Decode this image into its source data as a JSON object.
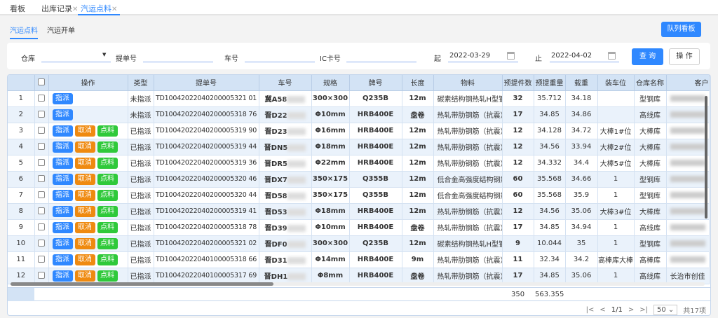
{
  "top_tabs": [
    {
      "label": "看板"
    },
    {
      "label": "出库记录"
    },
    {
      "label": "汽运点料",
      "active": true
    }
  ],
  "sub_tabs": [
    {
      "label": "汽运点料",
      "active": true
    },
    {
      "label": "汽运开单"
    }
  ],
  "queue_board_button": "队列看板",
  "filters": {
    "warehouse_label": "仓库",
    "warehouse_value": "",
    "bill_label": "提单号",
    "bill_value": "",
    "car_label": "车号",
    "car_value": "",
    "ic_label": "IC卡号",
    "ic_value": "",
    "start_label": "起",
    "start_value": "2022-03-29",
    "end_label": "止",
    "end_value": "2022-04-02",
    "query_button": "查 询",
    "action_button": "操 作"
  },
  "columns": [
    "",
    "",
    "操作",
    "类型",
    "提单号",
    "车号",
    "规格",
    "牌号",
    "长度",
    "物料",
    "预提件数",
    "预提重量",
    "载重",
    "装车位",
    "仓库名称",
    "客户"
  ],
  "action_labels": {
    "assign": "指派",
    "cancel": "取消",
    "check": "点料"
  },
  "rows": [
    {
      "no": "1",
      "type": "未指派",
      "bill": "TD10042022040200005321 01",
      "car": "冀A58",
      "spec": "300×300",
      "grade": "Q235B",
      "length": "12m",
      "material": "碳素结构钢热轧H型钢",
      "count": "32",
      "weight": "35.712",
      "load": "34.18",
      "slot": "",
      "warehouse": "型钢库"
    },
    {
      "no": "2",
      "type": "未指派",
      "bill": "TD10042022040200005318 76",
      "car": "晋D22",
      "spec": "Φ10mm",
      "grade": "HRB400E",
      "length": "盘卷",
      "material": "热轧带肋钢筋（抗震）",
      "count": "17",
      "weight": "34.85",
      "load": "34.86",
      "slot": "",
      "warehouse": "高线库"
    },
    {
      "no": "3",
      "type": "已指派",
      "bill": "TD10042022040200005319 90",
      "car": "晋D23",
      "spec": "Φ16mm",
      "grade": "HRB400E",
      "length": "12m",
      "material": "热轧带肋钢筋（抗震）",
      "count": "12",
      "weight": "34.128",
      "load": "34.72",
      "slot": "大棒1#位",
      "warehouse": "大棒库"
    },
    {
      "no": "4",
      "type": "已指派",
      "bill": "TD10042022040200005319 44",
      "car": "晋DN5",
      "spec": "Φ18mm",
      "grade": "HRB400E",
      "length": "12m",
      "material": "热轧带肋钢筋（抗震）",
      "count": "12",
      "weight": "34.56",
      "load": "33.94",
      "slot": "大棒2#位",
      "warehouse": "大棒库"
    },
    {
      "no": "5",
      "type": "已指派",
      "bill": "TD10042022040200005319 36",
      "car": "晋DR5",
      "spec": "Φ22mm",
      "grade": "HRB400E",
      "length": "12m",
      "material": "热轧带肋钢筋（抗震）",
      "count": "12",
      "weight": "34.332",
      "load": "34.4",
      "slot": "大棒5#位",
      "warehouse": "大棒库"
    },
    {
      "no": "6",
      "type": "已指派",
      "bill": "TD10042022040200005320 46",
      "car": "晋DX7",
      "spec": "350×175",
      "grade": "Q355B",
      "length": "12m",
      "material": "低合金高强度结构钢热轧",
      "count": "60",
      "weight": "35.568",
      "load": "34.66",
      "slot": "1",
      "warehouse": "型钢库"
    },
    {
      "no": "7",
      "type": "已指派",
      "bill": "TD10042022040200005320 44",
      "car": "晋D58",
      "spec": "350×175",
      "grade": "Q355B",
      "length": "12m",
      "material": "低合金高强度结构钢热轧",
      "count": "60",
      "weight": "35.568",
      "load": "35.9",
      "slot": "1",
      "warehouse": "型钢库"
    },
    {
      "no": "8",
      "type": "已指派",
      "bill": "TD10042022040200005319 41",
      "car": "晋D53",
      "spec": "Φ18mm",
      "grade": "HRB400E",
      "length": "12m",
      "material": "热轧带肋钢筋（抗震）",
      "count": "12",
      "weight": "34.56",
      "load": "35.06",
      "slot": "大棒3#位",
      "warehouse": "大棒库"
    },
    {
      "no": "9",
      "type": "已指派",
      "bill": "TD10042022040200005318 78",
      "car": "晋D39",
      "spec": "Φ10mm",
      "grade": "HRB400E",
      "length": "盘卷",
      "material": "热轧带肋钢筋（抗震）",
      "count": "17",
      "weight": "34.85",
      "load": "34.94",
      "slot": "1",
      "warehouse": "高线库"
    },
    {
      "no": "10",
      "type": "已指派",
      "bill": "TD10042022040200005321 02",
      "car": "晋DF0",
      "spec": "300×300",
      "grade": "Q235B",
      "length": "12m",
      "material": "碳素结构钢热轧H型钢",
      "count": "9",
      "weight": "10.044",
      "load": "35",
      "slot": "1",
      "warehouse": "型钢库"
    },
    {
      "no": "11",
      "type": "已指派",
      "bill": "TD10042022040100005318 66",
      "car": "晋D31",
      "spec": "Φ14mm",
      "grade": "HRB400E",
      "length": "9m",
      "material": "热轧带肋钢筋（抗震）",
      "count": "11",
      "weight": "32.34",
      "load": "34.2",
      "slot": "高棒库大棒",
      "warehouse": "高棒库"
    },
    {
      "no": "12",
      "type": "已指派",
      "bill": "TD10042022040100005317 69",
      "car": "晋DH1",
      "spec": "Φ8mm",
      "grade": "HRB400E",
      "length": "盘卷",
      "material": "热轧带肋钢筋（抗震）",
      "count": "17",
      "weight": "34.85",
      "load": "35.06",
      "slot": "1",
      "warehouse": "高线库",
      "customer": "长治市创佳"
    }
  ],
  "summary": {
    "count_total": "350",
    "weight_total": "563.355"
  },
  "pagination": {
    "page": "1/1",
    "page_size": "50",
    "total": "共17项"
  }
}
